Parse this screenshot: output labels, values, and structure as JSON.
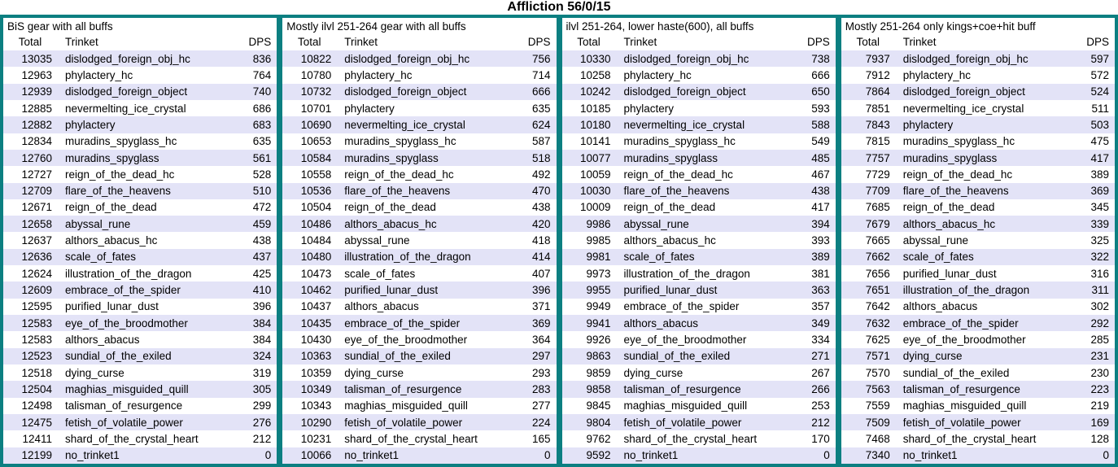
{
  "title": "Affliction 56/0/15",
  "colors": {
    "border_teal": "#0c7f81",
    "row_alt_lavender": "#e3e3f7",
    "row_base": "#ffffff",
    "text": "#000000"
  },
  "chart_data": {
    "type": "table",
    "title": "Affliction 56/0/15",
    "columns": [
      "Total",
      "Trinket",
      "DPS"
    ],
    "panels": [
      {
        "header": "BiS gear with all buffs",
        "rows": [
          [
            13035,
            "dislodged_foreign_obj_hc",
            836
          ],
          [
            12963,
            "phylactery_hc",
            764
          ],
          [
            12939,
            "dislodged_foreign_object",
            740
          ],
          [
            12885,
            "nevermelting_ice_crystal",
            686
          ],
          [
            12882,
            "phylactery",
            683
          ],
          [
            12834,
            "muradins_spyglass_hc",
            635
          ],
          [
            12760,
            "muradins_spyglass",
            561
          ],
          [
            12727,
            "reign_of_the_dead_hc",
            528
          ],
          [
            12709,
            "flare_of_the_heavens",
            510
          ],
          [
            12671,
            "reign_of_the_dead",
            472
          ],
          [
            12658,
            "abyssal_rune",
            459
          ],
          [
            12637,
            "althors_abacus_hc",
            438
          ],
          [
            12636,
            "scale_of_fates",
            437
          ],
          [
            12624,
            "illustration_of_the_dragon",
            425
          ],
          [
            12609,
            "embrace_of_the_spider",
            410
          ],
          [
            12595,
            "purified_lunar_dust",
            396
          ],
          [
            12583,
            "eye_of_the_broodmother",
            384
          ],
          [
            12583,
            "althors_abacus",
            384
          ],
          [
            12523,
            "sundial_of_the_exiled",
            324
          ],
          [
            12518,
            "dying_curse",
            319
          ],
          [
            12504,
            "maghias_misguided_quill",
            305
          ],
          [
            12498,
            "talisman_of_resurgence",
            299
          ],
          [
            12475,
            "fetish_of_volatile_power",
            276
          ],
          [
            12411,
            "shard_of_the_crystal_heart",
            212
          ],
          [
            12199,
            "no_trinket1",
            0
          ]
        ]
      },
      {
        "header": "Mostly ilvl 251-264 gear with all buffs",
        "rows": [
          [
            10822,
            "dislodged_foreign_obj_hc",
            756
          ],
          [
            10780,
            "phylactery_hc",
            714
          ],
          [
            10732,
            "dislodged_foreign_object",
            666
          ],
          [
            10701,
            "phylactery",
            635
          ],
          [
            10690,
            "nevermelting_ice_crystal",
            624
          ],
          [
            10653,
            "muradins_spyglass_hc",
            587
          ],
          [
            10584,
            "muradins_spyglass",
            518
          ],
          [
            10558,
            "reign_of_the_dead_hc",
            492
          ],
          [
            10536,
            "flare_of_the_heavens",
            470
          ],
          [
            10504,
            "reign_of_the_dead",
            438
          ],
          [
            10486,
            "althors_abacus_hc",
            420
          ],
          [
            10484,
            "abyssal_rune",
            418
          ],
          [
            10480,
            "illustration_of_the_dragon",
            414
          ],
          [
            10473,
            "scale_of_fates",
            407
          ],
          [
            10462,
            "purified_lunar_dust",
            396
          ],
          [
            10437,
            "althors_abacus",
            371
          ],
          [
            10435,
            "embrace_of_the_spider",
            369
          ],
          [
            10430,
            "eye_of_the_broodmother",
            364
          ],
          [
            10363,
            "sundial_of_the_exiled",
            297
          ],
          [
            10359,
            "dying_curse",
            293
          ],
          [
            10349,
            "talisman_of_resurgence",
            283
          ],
          [
            10343,
            "maghias_misguided_quill",
            277
          ],
          [
            10290,
            "fetish_of_volatile_power",
            224
          ],
          [
            10231,
            "shard_of_the_crystal_heart",
            165
          ],
          [
            10066,
            "no_trinket1",
            0
          ]
        ]
      },
      {
        "header": "ilvl 251-264, lower haste(600), all buffs",
        "rows": [
          [
            10330,
            "dislodged_foreign_obj_hc",
            738
          ],
          [
            10258,
            "phylactery_hc",
            666
          ],
          [
            10242,
            "dislodged_foreign_object",
            650
          ],
          [
            10185,
            "phylactery",
            593
          ],
          [
            10180,
            "nevermelting_ice_crystal",
            588
          ],
          [
            10141,
            "muradins_spyglass_hc",
            549
          ],
          [
            10077,
            "muradins_spyglass",
            485
          ],
          [
            10059,
            "reign_of_the_dead_hc",
            467
          ],
          [
            10030,
            "flare_of_the_heavens",
            438
          ],
          [
            10009,
            "reign_of_the_dead",
            417
          ],
          [
            9986,
            "abyssal_rune",
            394
          ],
          [
            9985,
            "althors_abacus_hc",
            393
          ],
          [
            9981,
            "scale_of_fates",
            389
          ],
          [
            9973,
            "illustration_of_the_dragon",
            381
          ],
          [
            9955,
            "purified_lunar_dust",
            363
          ],
          [
            9949,
            "embrace_of_the_spider",
            357
          ],
          [
            9941,
            "althors_abacus",
            349
          ],
          [
            9926,
            "eye_of_the_broodmother",
            334
          ],
          [
            9863,
            "sundial_of_the_exiled",
            271
          ],
          [
            9859,
            "dying_curse",
            267
          ],
          [
            9858,
            "talisman_of_resurgence",
            266
          ],
          [
            9845,
            "maghias_misguided_quill",
            253
          ],
          [
            9804,
            "fetish_of_volatile_power",
            212
          ],
          [
            9762,
            "shard_of_the_crystal_heart",
            170
          ],
          [
            9592,
            "no_trinket1",
            0
          ]
        ]
      },
      {
        "header": "Mostly 251-264 only kings+coe+hit buff",
        "rows": [
          [
            7937,
            "dislodged_foreign_obj_hc",
            597
          ],
          [
            7912,
            "phylactery_hc",
            572
          ],
          [
            7864,
            "dislodged_foreign_object",
            524
          ],
          [
            7851,
            "nevermelting_ice_crystal",
            511
          ],
          [
            7843,
            "phylactery",
            503
          ],
          [
            7815,
            "muradins_spyglass_hc",
            475
          ],
          [
            7757,
            "muradins_spyglass",
            417
          ],
          [
            7729,
            "reign_of_the_dead_hc",
            389
          ],
          [
            7709,
            "flare_of_the_heavens",
            369
          ],
          [
            7685,
            "reign_of_the_dead",
            345
          ],
          [
            7679,
            "althors_abacus_hc",
            339
          ],
          [
            7665,
            "abyssal_rune",
            325
          ],
          [
            7662,
            "scale_of_fates",
            322
          ],
          [
            7656,
            "purified_lunar_dust",
            316
          ],
          [
            7651,
            "illustration_of_the_dragon",
            311
          ],
          [
            7642,
            "althors_abacus",
            302
          ],
          [
            7632,
            "embrace_of_the_spider",
            292
          ],
          [
            7625,
            "eye_of_the_broodmother",
            285
          ],
          [
            7571,
            "dying_curse",
            231
          ],
          [
            7570,
            "sundial_of_the_exiled",
            230
          ],
          [
            7563,
            "talisman_of_resurgence",
            223
          ],
          [
            7559,
            "maghias_misguided_quill",
            219
          ],
          [
            7509,
            "fetish_of_volatile_power",
            169
          ],
          [
            7468,
            "shard_of_the_crystal_heart",
            128
          ],
          [
            7340,
            "no_trinket1",
            0
          ]
        ]
      }
    ]
  }
}
